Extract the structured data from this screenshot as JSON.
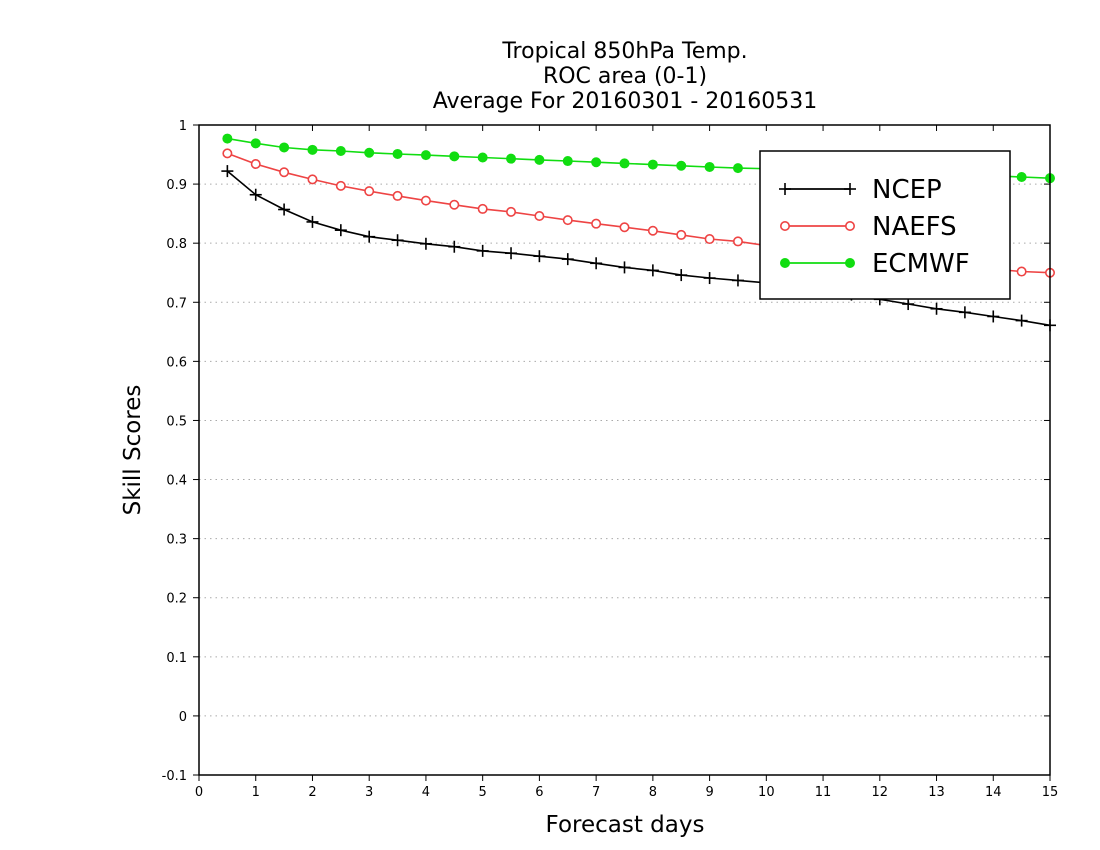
{
  "chart_data": {
    "type": "line",
    "title": [
      "Tropical 850hPa Temp.",
      "ROC area (0-1)",
      "Average For 20160301 - 20160531"
    ],
    "xlabel": "Forecast days",
    "ylabel": "Skill Scores",
    "xlim": [
      0,
      15
    ],
    "ylim": [
      -0.1,
      1
    ],
    "x_ticks": [
      0,
      1,
      2,
      3,
      4,
      5,
      6,
      7,
      8,
      9,
      10,
      11,
      12,
      13,
      14,
      15
    ],
    "y_ticks": [
      -0.1,
      0,
      0.1,
      0.2,
      0.3,
      0.4,
      0.5,
      0.6,
      0.7,
      0.8,
      0.9,
      1
    ],
    "y_tick_labels": [
      "-0.1",
      "0",
      "0.1",
      "0.2",
      "0.3",
      "0.4",
      "0.5",
      "0.6",
      "0.7",
      "0.8",
      "0.9",
      "1"
    ],
    "grid": "horizontal dotted",
    "legend_position": "top-right",
    "x": [
      0.5,
      1,
      1.5,
      2,
      2.5,
      3,
      3.5,
      4,
      4.5,
      5,
      5.5,
      6,
      6.5,
      7,
      7.5,
      8,
      8.5,
      9,
      9.5,
      10,
      10.5,
      11,
      11.5,
      12,
      12.5,
      13,
      13.5,
      14,
      14.5,
      15
    ],
    "series": [
      {
        "name": "NCEP",
        "color": "#000000",
        "marker": "plus",
        "values": [
          0.922,
          0.882,
          0.857,
          0.836,
          0.822,
          0.811,
          0.805,
          0.799,
          0.794,
          0.787,
          0.783,
          0.778,
          0.773,
          0.766,
          0.759,
          0.754,
          0.746,
          0.741,
          0.737,
          0.733,
          0.727,
          0.72,
          0.713,
          0.705,
          0.697,
          0.689,
          0.683,
          0.676,
          0.669,
          0.661
        ]
      },
      {
        "name": "NAEFS",
        "color": "#ee4444",
        "marker": "open-circle",
        "values": [
          0.952,
          0.934,
          0.92,
          0.908,
          0.897,
          0.888,
          0.88,
          0.872,
          0.865,
          0.858,
          0.853,
          0.846,
          0.839,
          0.833,
          0.827,
          0.821,
          0.814,
          0.807,
          0.803,
          0.796,
          0.79,
          0.784,
          0.779,
          0.773,
          0.768,
          0.764,
          0.759,
          0.756,
          0.752,
          0.75
        ]
      },
      {
        "name": "ECMWF",
        "color": "#11dd11",
        "marker": "filled-circle",
        "values": [
          0.977,
          0.969,
          0.962,
          0.958,
          0.956,
          0.953,
          0.951,
          0.949,
          0.947,
          0.945,
          0.943,
          0.941,
          0.939,
          0.937,
          0.935,
          0.933,
          0.931,
          0.929,
          0.927,
          0.926,
          0.924,
          0.923,
          0.921,
          0.92,
          0.918,
          0.917,
          0.915,
          0.914,
          0.912,
          0.91
        ]
      }
    ]
  }
}
